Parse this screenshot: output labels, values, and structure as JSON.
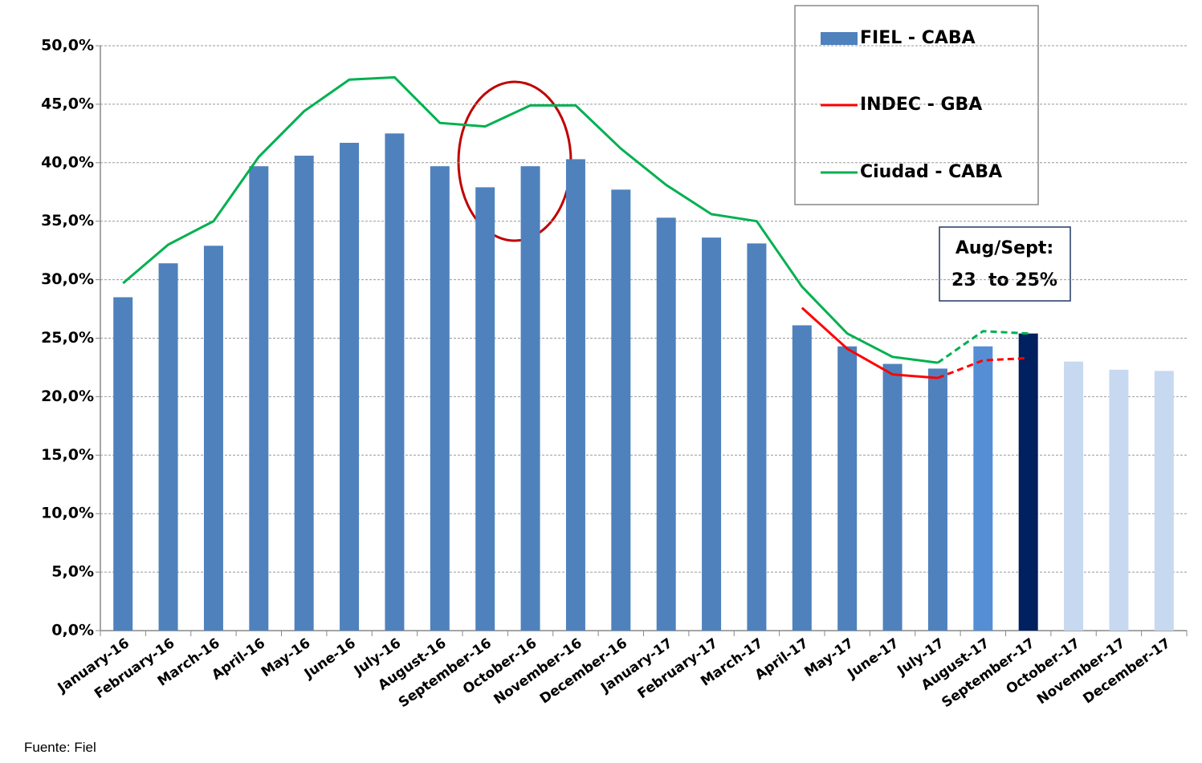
{
  "chart_data": {
    "type": "bar",
    "categories": [
      "January-16",
      "February-16",
      "March-16",
      "April-16",
      "May-16",
      "June-16",
      "July-16",
      "August-16",
      "September-16",
      "October-16",
      "November-16",
      "December-16",
      "January-17",
      "February-17",
      "March-17",
      "April-17",
      "May-17",
      "June-17",
      "July-17",
      "August-17",
      "September-17",
      "October-17",
      "November-17",
      "December-17"
    ],
    "series": [
      {
        "name": "FIEL - CABA",
        "type": "bar",
        "color": "#4f81bd",
        "colors": [
          "#4f81bd",
          "#4f81bd",
          "#4f81bd",
          "#4f81bd",
          "#4f81bd",
          "#4f81bd",
          "#4f81bd",
          "#4f81bd",
          "#4f81bd",
          "#4f81bd",
          "#4f81bd",
          "#4f81bd",
          "#4f81bd",
          "#4f81bd",
          "#4f81bd",
          "#4f81bd",
          "#4f81bd",
          "#4f81bd",
          "#4f81bd",
          "#558ed5",
          "#002060",
          "#c6d9f0",
          "#c6d9f0",
          "#c6d9f0"
        ],
        "values": [
          28.5,
          31.4,
          32.9,
          39.7,
          40.6,
          41.7,
          42.5,
          39.7,
          37.9,
          39.7,
          40.3,
          37.7,
          35.3,
          33.6,
          33.1,
          26.1,
          24.3,
          22.8,
          22.4,
          24.3,
          25.4,
          23.0,
          22.3,
          22.2
        ]
      },
      {
        "name": "INDEC - GBA",
        "type": "line",
        "color": "#ff0000",
        "dashed_from_index": 18,
        "values": [
          null,
          null,
          null,
          null,
          null,
          null,
          null,
          null,
          null,
          null,
          null,
          null,
          null,
          null,
          null,
          27.6,
          24.1,
          21.9,
          21.6,
          23.1,
          23.3,
          null,
          null,
          null
        ]
      },
      {
        "name": "Ciudad - CABA",
        "type": "line",
        "color": "#00b050",
        "dashed_from_index": 18,
        "values": [
          29.7,
          33.0,
          35.0,
          40.5,
          44.4,
          47.1,
          47.3,
          43.4,
          43.1,
          44.9,
          44.9,
          41.2,
          38.1,
          35.6,
          35.0,
          29.4,
          25.4,
          23.4,
          22.9,
          25.6,
          25.4,
          null,
          null,
          null
        ]
      }
    ],
    "ylim": [
      0,
      50
    ],
    "yticks": [
      {
        "value": 0,
        "label": "0,0%"
      },
      {
        "value": 5,
        "label": "5,0%"
      },
      {
        "value": 10,
        "label": "10,0%"
      },
      {
        "value": 15,
        "label": "15,0%"
      },
      {
        "value": 20,
        "label": "20,0%"
      },
      {
        "value": 25,
        "label": "25,0%"
      },
      {
        "value": 30,
        "label": "30,0%"
      },
      {
        "value": 35,
        "label": "35,0%"
      },
      {
        "value": 40,
        "label": "40,0%"
      },
      {
        "value": 45,
        "label": "45,0%"
      },
      {
        "value": 50,
        "label": "50,0%"
      }
    ],
    "grid": true,
    "legend": "top-right",
    "annotation": [
      "Aug/Sept:",
      "23  to 25%"
    ],
    "source": "Fuente: Fiel"
  }
}
